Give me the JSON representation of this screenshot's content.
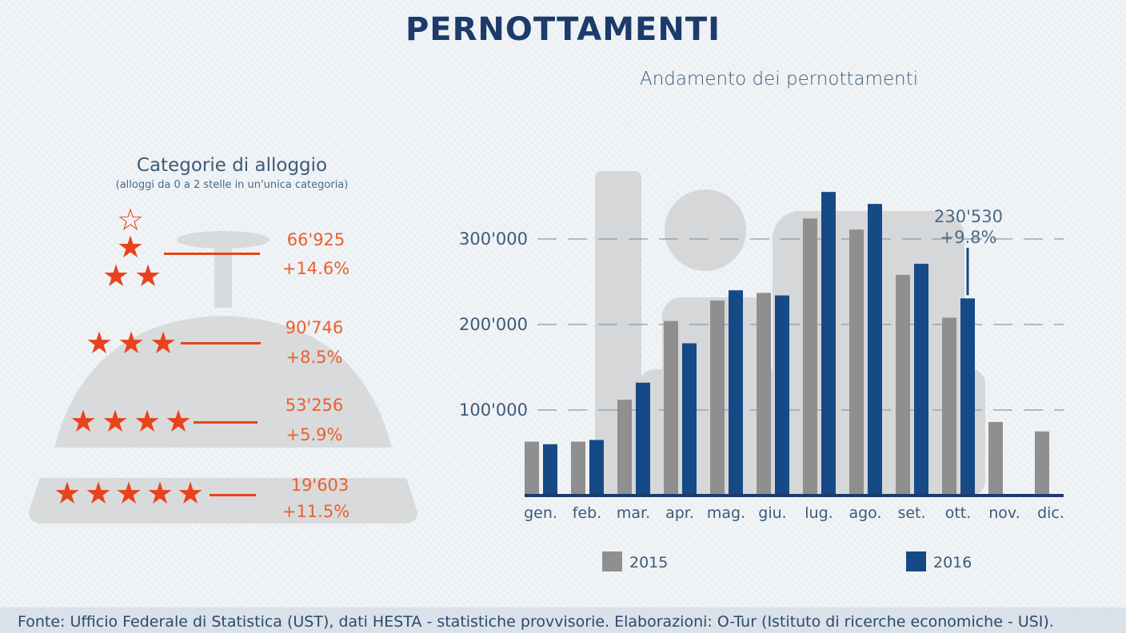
{
  "title": "PERNOTTAMENTI",
  "categories_panel": {
    "title": "Categorie di alloggio",
    "subtitle": "(alloggi da 0 a 2 stelle in un'unica categoria)",
    "items": [
      {
        "stars": "0-2",
        "value": "66'925",
        "change": "+14.6%"
      },
      {
        "stars": "3",
        "value": "90'746",
        "change": "+8.5%"
      },
      {
        "stars": "4",
        "value": "53'256",
        "change": "+5.9%"
      },
      {
        "stars": "5",
        "value": "19'603",
        "change": "+11.5%"
      }
    ],
    "accent_color": "#e8431c"
  },
  "chart_data": {
    "type": "bar",
    "title": "Andamento dei pernottamenti",
    "categories": [
      "gen.",
      "feb.",
      "mar.",
      "apr.",
      "mag.",
      "giu.",
      "lug.",
      "ago.",
      "set.",
      "ott.",
      "nov.",
      "dic."
    ],
    "series": [
      {
        "name": "2015",
        "color": "#8f8f8f",
        "values": [
          63000,
          63000,
          112000,
          204000,
          228000,
          237000,
          324000,
          311000,
          258000,
          208000,
          86000,
          75000
        ]
      },
      {
        "name": "2016",
        "color": "#164a86",
        "values": [
          60000,
          65000,
          132000,
          178000,
          240000,
          234000,
          355000,
          341000,
          271000,
          230530,
          null,
          null
        ]
      }
    ],
    "yticks": [
      {
        "value": 100000,
        "label": "100'000"
      },
      {
        "value": 200000,
        "label": "200'000"
      },
      {
        "value": 300000,
        "label": "300'000"
      }
    ],
    "ylim": [
      0,
      380000
    ],
    "grid": "dashed",
    "legend_position": "bottom",
    "annotation": {
      "category": "ott.",
      "value": "230'530",
      "change": "+9.8%"
    }
  },
  "footer": {
    "source": "Fonte: Ufficio Federale di Statistica (UST), dati HESTA - statistiche provvisorie. Elaborazioni: O-Tur (Istituto di ricerche economiche - USI)."
  }
}
